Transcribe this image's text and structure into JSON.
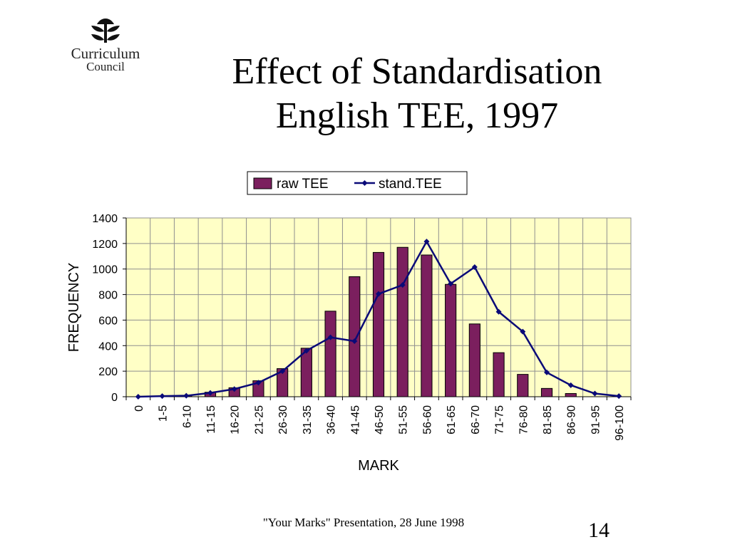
{
  "logo": {
    "name": "Curriculum",
    "sub": "Council"
  },
  "title": {
    "line1": "Effect of Standardisation",
    "line2": "English TEE, 1997"
  },
  "footer": {
    "text": "\"Your Marks\" Presentation, 28 June 1998",
    "page": "14"
  },
  "colors": {
    "bar": "#7B1F5E",
    "line": "#0A0A78",
    "plot_bg": "#FFFFC6",
    "grid": "#8F8F8F"
  },
  "chart_data": {
    "type": "bar",
    "categories": [
      "0",
      "1-5",
      "6-10",
      "11-15",
      "16-20",
      "21-25",
      "26-30",
      "31-35",
      "36-40",
      "41-45",
      "46-50",
      "51-55",
      "56-60",
      "61-65",
      "66-70",
      "71-75",
      "76-80",
      "81-85",
      "86-90",
      "91-95",
      "96-100"
    ],
    "series": [
      {
        "name": "raw TEE",
        "type": "bar",
        "values": [
          0,
          3,
          8,
          35,
          70,
          125,
          220,
          380,
          670,
          940,
          1130,
          1170,
          1110,
          880,
          570,
          345,
          175,
          65,
          25,
          0,
          0
        ]
      },
      {
        "name": "stand.TEE",
        "type": "line",
        "values": [
          0,
          5,
          8,
          30,
          60,
          110,
          200,
          360,
          465,
          435,
          805,
          875,
          1215,
          885,
          1015,
          665,
          510,
          190,
          90,
          25,
          5
        ]
      }
    ],
    "xlabel": "MARK",
    "ylabel": "FREQUENCY",
    "ylim": [
      0,
      1400
    ],
    "yticks": [
      0,
      200,
      400,
      600,
      800,
      1000,
      1200,
      1400
    ],
    "grid": true,
    "legend": "top"
  }
}
